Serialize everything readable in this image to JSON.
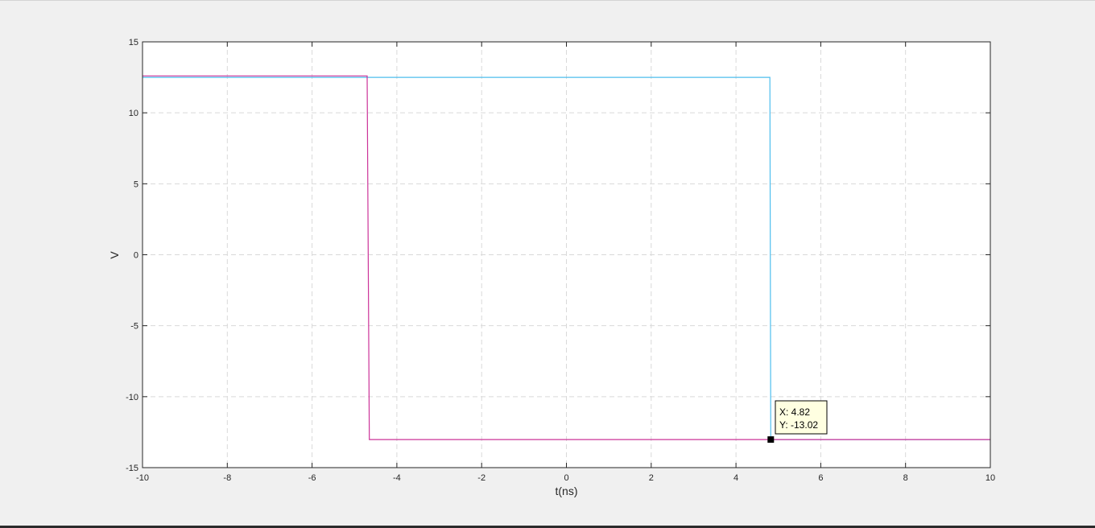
{
  "chart_data": {
    "type": "line",
    "title": "",
    "xlabel": "t(ns)",
    "ylabel": "V",
    "xlim": [
      -10,
      10
    ],
    "ylim": [
      -15,
      15
    ],
    "xticks": [
      -10,
      -8,
      -6,
      -4,
      -2,
      0,
      2,
      4,
      6,
      8,
      10
    ],
    "yticks": [
      -15,
      -10,
      -5,
      0,
      5,
      10,
      15
    ],
    "grid": true,
    "series": [
      {
        "color": "#4dbeee",
        "x": [
          -10,
          4.8,
          4.82,
          10
        ],
        "y": [
          12.5,
          12.5,
          -13.02,
          -13.02
        ]
      },
      {
        "color": "#cc3399",
        "x": [
          -10,
          -4.7,
          -4.65,
          10
        ],
        "y": [
          12.6,
          12.6,
          -13.02,
          -13.02
        ]
      }
    ],
    "datatip": {
      "x": 4.82,
      "y": -13.02,
      "x_text": "X: 4.82",
      "y_text": "Y: -13.02"
    }
  }
}
